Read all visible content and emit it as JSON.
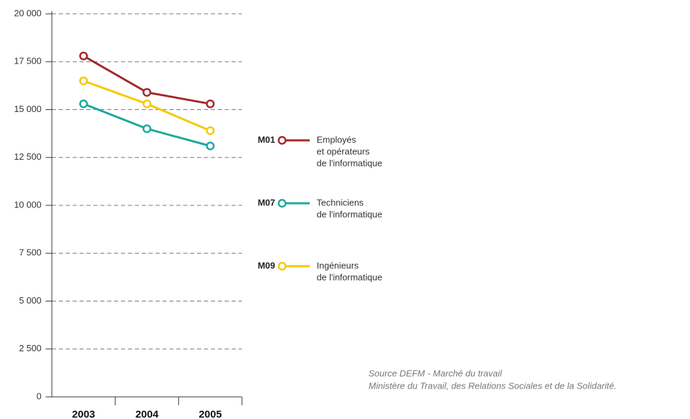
{
  "chart_data": {
    "type": "line",
    "categories": [
      "2003",
      "2004",
      "2005"
    ],
    "series": [
      {
        "name": "M01",
        "description": [
          "Employés",
          "et opérateurs",
          "de l'informatique"
        ],
        "color": "#a3262a",
        "values": [
          17800,
          15900,
          15300
        ]
      },
      {
        "name": "M07",
        "description": [
          "Techniciens",
          "de l'informatique"
        ],
        "color": "#1aa99a",
        "values": [
          15300,
          14000,
          13100
        ]
      },
      {
        "name": "M09",
        "description": [
          "Ingénieurs",
          "de l'informatique"
        ],
        "color": "#f5c800",
        "values": [
          16500,
          15300,
          13900
        ]
      }
    ],
    "ylim": [
      0,
      20000
    ],
    "yticks": [
      0,
      {
        "value": 2500,
        "label": "2 500"
      },
      {
        "value": 5000,
        "label": "5 000"
      },
      {
        "value": 7500,
        "label": "7 500"
      },
      {
        "value": 10000,
        "label": "10 000"
      },
      {
        "value": 12500,
        "label": "12 500"
      },
      {
        "value": 15000,
        "label": "15 000"
      },
      {
        "value": 17500,
        "label": "17 500"
      },
      {
        "value": 20000,
        "label": "20 000"
      }
    ],
    "grid": true,
    "source": [
      "Source DEFM - Marché du travail",
      "Ministère du Travail, des Relations Sociales et de la Solidarité."
    ]
  }
}
